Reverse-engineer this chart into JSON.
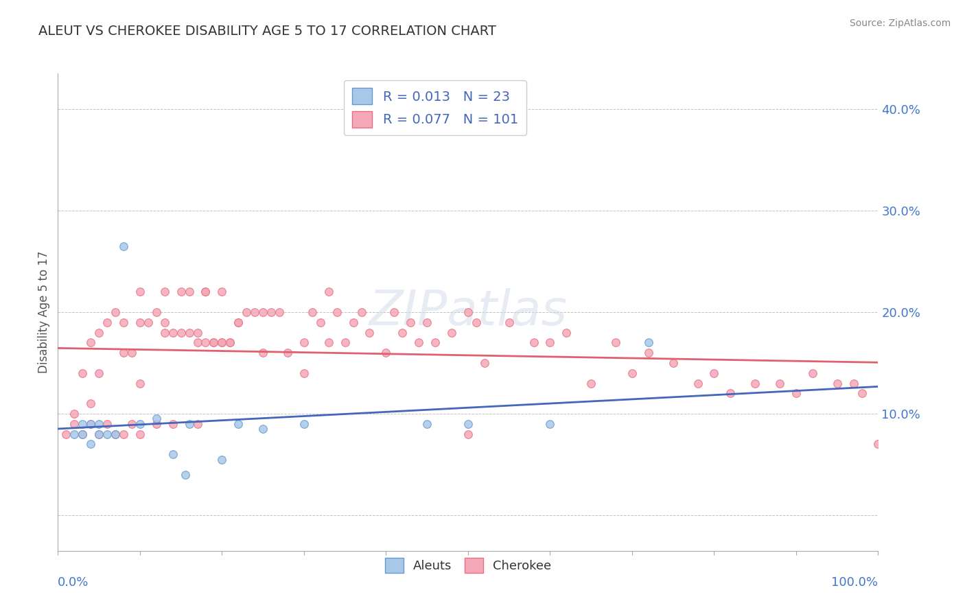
{
  "title": "ALEUT VS CHEROKEE DISABILITY AGE 5 TO 17 CORRELATION CHART",
  "source": "Source: ZipAtlas.com",
  "ylabel": "Disability Age 5 to 17",
  "ytick_values": [
    0.0,
    0.1,
    0.2,
    0.3,
    0.4
  ],
  "ytick_labels": [
    "",
    "10.0%",
    "20.0%",
    "30.0%",
    "40.0%"
  ],
  "xlim": [
    0.0,
    1.0
  ],
  "ylim": [
    -0.035,
    0.435
  ],
  "aleuts_R": 0.013,
  "aleuts_N": 23,
  "cherokee_R": 0.077,
  "cherokee_N": 101,
  "aleuts_color": "#a8c8e8",
  "cherokee_color": "#f4a8b8",
  "aleuts_edge_color": "#6699cc",
  "cherokee_edge_color": "#e87080",
  "aleuts_line_color": "#4466bb",
  "cherokee_line_color": "#e06070",
  "background_color": "#ffffff",
  "grid_color": "#bbbbbb",
  "title_color": "#333333",
  "axis_label_color": "#4477cc",
  "source_color": "#888888",
  "legend_text_color": "#4466bb",
  "aleuts_x": [
    0.02,
    0.03,
    0.03,
    0.04,
    0.04,
    0.05,
    0.05,
    0.06,
    0.07,
    0.08,
    0.1,
    0.12,
    0.14,
    0.155,
    0.16,
    0.2,
    0.22,
    0.25,
    0.3,
    0.45,
    0.5,
    0.6,
    0.72
  ],
  "aleuts_y": [
    0.08,
    0.08,
    0.09,
    0.07,
    0.09,
    0.08,
    0.09,
    0.08,
    0.08,
    0.265,
    0.09,
    0.095,
    0.06,
    0.04,
    0.09,
    0.055,
    0.09,
    0.085,
    0.09,
    0.09,
    0.09,
    0.09,
    0.17
  ],
  "cherokee_x": [
    0.01,
    0.02,
    0.02,
    0.03,
    0.03,
    0.04,
    0.04,
    0.04,
    0.05,
    0.05,
    0.05,
    0.06,
    0.06,
    0.07,
    0.07,
    0.08,
    0.08,
    0.08,
    0.09,
    0.09,
    0.1,
    0.1,
    0.1,
    0.1,
    0.11,
    0.12,
    0.12,
    0.13,
    0.13,
    0.13,
    0.14,
    0.14,
    0.15,
    0.15,
    0.16,
    0.16,
    0.17,
    0.17,
    0.17,
    0.18,
    0.18,
    0.18,
    0.19,
    0.19,
    0.2,
    0.2,
    0.2,
    0.21,
    0.21,
    0.22,
    0.22,
    0.23,
    0.24,
    0.25,
    0.25,
    0.26,
    0.27,
    0.28,
    0.3,
    0.3,
    0.31,
    0.32,
    0.33,
    0.33,
    0.34,
    0.35,
    0.36,
    0.37,
    0.38,
    0.4,
    0.41,
    0.42,
    0.43,
    0.44,
    0.45,
    0.46,
    0.48,
    0.5,
    0.5,
    0.51,
    0.52,
    0.55,
    0.58,
    0.6,
    0.62,
    0.65,
    0.68,
    0.7,
    0.72,
    0.75,
    0.78,
    0.8,
    0.82,
    0.85,
    0.88,
    0.9,
    0.92,
    0.95,
    0.97,
    0.98,
    1.0
  ],
  "cherokee_y": [
    0.08,
    0.09,
    0.1,
    0.08,
    0.14,
    0.09,
    0.11,
    0.17,
    0.08,
    0.14,
    0.18,
    0.09,
    0.19,
    0.08,
    0.2,
    0.08,
    0.16,
    0.19,
    0.09,
    0.16,
    0.08,
    0.13,
    0.19,
    0.22,
    0.19,
    0.09,
    0.2,
    0.19,
    0.22,
    0.18,
    0.09,
    0.18,
    0.18,
    0.22,
    0.18,
    0.22,
    0.18,
    0.09,
    0.17,
    0.22,
    0.17,
    0.22,
    0.17,
    0.17,
    0.17,
    0.22,
    0.17,
    0.17,
    0.17,
    0.19,
    0.19,
    0.2,
    0.2,
    0.2,
    0.16,
    0.2,
    0.2,
    0.16,
    0.14,
    0.17,
    0.2,
    0.19,
    0.17,
    0.22,
    0.2,
    0.17,
    0.19,
    0.2,
    0.18,
    0.16,
    0.2,
    0.18,
    0.19,
    0.17,
    0.19,
    0.17,
    0.18,
    0.08,
    0.2,
    0.19,
    0.15,
    0.19,
    0.17,
    0.17,
    0.18,
    0.13,
    0.17,
    0.14,
    0.16,
    0.15,
    0.13,
    0.14,
    0.12,
    0.13,
    0.13,
    0.12,
    0.14,
    0.13,
    0.13,
    0.12,
    0.07
  ]
}
